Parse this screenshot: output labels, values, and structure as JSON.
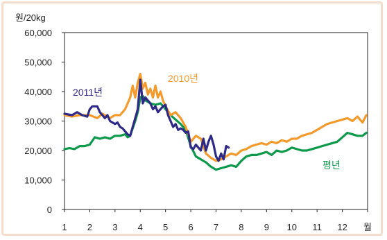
{
  "chart_data": {
    "type": "line",
    "y_unit_label": "원/20kg",
    "x_unit_label": "월",
    "x_ticks": [
      "1",
      "2",
      "3",
      "4",
      "5",
      "6",
      "7",
      "8",
      "9",
      "10",
      "11",
      "12"
    ],
    "ylim": [
      0,
      60000
    ],
    "y_ticks": [
      0,
      10000,
      20000,
      30000,
      40000,
      50000,
      60000
    ],
    "y_tick_labels": [
      "0",
      "10,000",
      "20,000",
      "30,000",
      "40,000",
      "50,000",
      "60,000"
    ],
    "grid": false,
    "series": [
      {
        "name": "2010년",
        "color": "#f39a2b",
        "x": [
          1.0,
          1.3,
          1.6,
          1.8,
          2.0,
          2.3,
          2.5,
          2.8,
          3.0,
          3.2,
          3.4,
          3.6,
          3.7,
          3.8,
          3.9,
          4.0,
          4.1,
          4.2,
          4.3,
          4.4,
          4.5,
          4.6,
          4.7,
          4.8,
          4.9,
          5.0,
          5.2,
          5.4,
          5.6,
          5.8,
          6.0,
          6.2,
          6.4,
          6.6,
          6.8,
          7.0,
          7.2,
          7.4,
          7.6,
          7.8,
          8.0,
          8.2,
          8.4,
          8.6,
          8.8,
          9.0,
          9.2,
          9.4,
          9.6,
          9.8,
          10.0,
          10.2,
          10.4,
          10.6,
          10.8,
          11.0,
          11.2,
          11.4,
          11.6,
          11.8,
          12.0,
          12.2,
          12.4,
          12.6,
          12.8,
          12.95
        ],
        "values": [
          32000,
          31500,
          32000,
          32000,
          32000,
          31000,
          32500,
          31000,
          32000,
          32000,
          34000,
          38000,
          42000,
          38000,
          43000,
          46000,
          41000,
          43000,
          39000,
          41000,
          38000,
          42000,
          38000,
          40000,
          37000,
          35000,
          32000,
          33000,
          31000,
          28000,
          23000,
          25000,
          24000,
          19000,
          17500,
          16500,
          17000,
          18000,
          19000,
          18500,
          20000,
          20500,
          21500,
          22000,
          22500,
          22000,
          23000,
          22500,
          23500,
          23000,
          24000,
          24000,
          25000,
          25500,
          26000,
          27000,
          28000,
          29000,
          29500,
          30000,
          30500,
          31000,
          30000,
          31500,
          29500,
          32000
        ]
      },
      {
        "name": "2011년",
        "color": "#2e2a86",
        "x": [
          1.0,
          1.3,
          1.5,
          1.7,
          1.9,
          2.0,
          2.1,
          2.2,
          2.3,
          2.4,
          2.5,
          2.6,
          2.7,
          2.8,
          2.9,
          3.0,
          3.1,
          3.2,
          3.3,
          3.4,
          3.5,
          3.6,
          3.7,
          3.8,
          3.9,
          4.0,
          4.1,
          4.2,
          4.3,
          4.4,
          4.5,
          4.6,
          4.7,
          4.8,
          4.9,
          5.0,
          5.1,
          5.2,
          5.3,
          5.4,
          5.5,
          5.6,
          5.7,
          5.8,
          5.9,
          6.0,
          6.1,
          6.2,
          6.3,
          6.4,
          6.5,
          6.6,
          6.7,
          6.8,
          6.9,
          7.0,
          7.1,
          7.2,
          7.3,
          7.4,
          7.5
        ],
        "values": [
          32500,
          32000,
          33000,
          32000,
          31500,
          34000,
          35000,
          35000,
          35000,
          33000,
          32000,
          31000,
          32000,
          30000,
          29500,
          29000,
          29500,
          28000,
          27500,
          26500,
          25500,
          25000,
          28000,
          31000,
          34000,
          44000,
          36000,
          38000,
          37000,
          36000,
          34000,
          35000,
          33000,
          34000,
          35000,
          35500,
          32000,
          30000,
          28000,
          29000,
          27000,
          27500,
          27000,
          26000,
          26500,
          21000,
          20500,
          22000,
          21000,
          20000,
          24000,
          20000,
          23000,
          25000,
          22000,
          18000,
          16500,
          19000,
          17000,
          21500,
          21000
        ]
      },
      {
        "name": "평년",
        "color": "#0c9a4a",
        "x": [
          1.0,
          1.2,
          1.4,
          1.6,
          1.8,
          2.0,
          2.2,
          2.4,
          2.6,
          2.8,
          3.0,
          3.2,
          3.4,
          3.5,
          3.6,
          3.7,
          3.8,
          3.9,
          4.0,
          4.1,
          4.2,
          4.4,
          4.6,
          4.8,
          5.0,
          5.2,
          5.4,
          5.6,
          5.8,
          6.0,
          6.2,
          6.4,
          6.6,
          6.8,
          7.0,
          7.2,
          7.4,
          7.6,
          7.8,
          8.0,
          8.2,
          8.4,
          8.6,
          8.8,
          9.0,
          9.2,
          9.4,
          9.6,
          9.8,
          10.0,
          10.2,
          10.4,
          10.6,
          10.8,
          11.0,
          11.2,
          11.4,
          11.6,
          11.8,
          12.0,
          12.2,
          12.4,
          12.6,
          12.8,
          12.95
        ],
        "values": [
          20500,
          20800,
          20500,
          21500,
          21500,
          22000,
          24500,
          24000,
          24500,
          24000,
          25000,
          25000,
          25500,
          24500,
          25000,
          27500,
          30000,
          33000,
          38000,
          38500,
          37000,
          36000,
          35500,
          36000,
          34000,
          32000,
          30500,
          29000,
          27000,
          21500,
          18000,
          17000,
          16000,
          14500,
          13500,
          14000,
          14500,
          15000,
          14500,
          16500,
          18000,
          18500,
          18500,
          19000,
          19500,
          18500,
          20000,
          19500,
          20000,
          21000,
          20500,
          20000,
          20000,
          20500,
          21000,
          21500,
          22000,
          22500,
          23000,
          24500,
          26000,
          25500,
          25000,
          25000,
          26000
        ]
      }
    ],
    "annotations": [
      {
        "text": "2011년",
        "color": "#2e2a86"
      },
      {
        "text": "2010년",
        "color": "#f39a2b"
      },
      {
        "text": "평년",
        "color": "#0c9a4a"
      }
    ]
  }
}
